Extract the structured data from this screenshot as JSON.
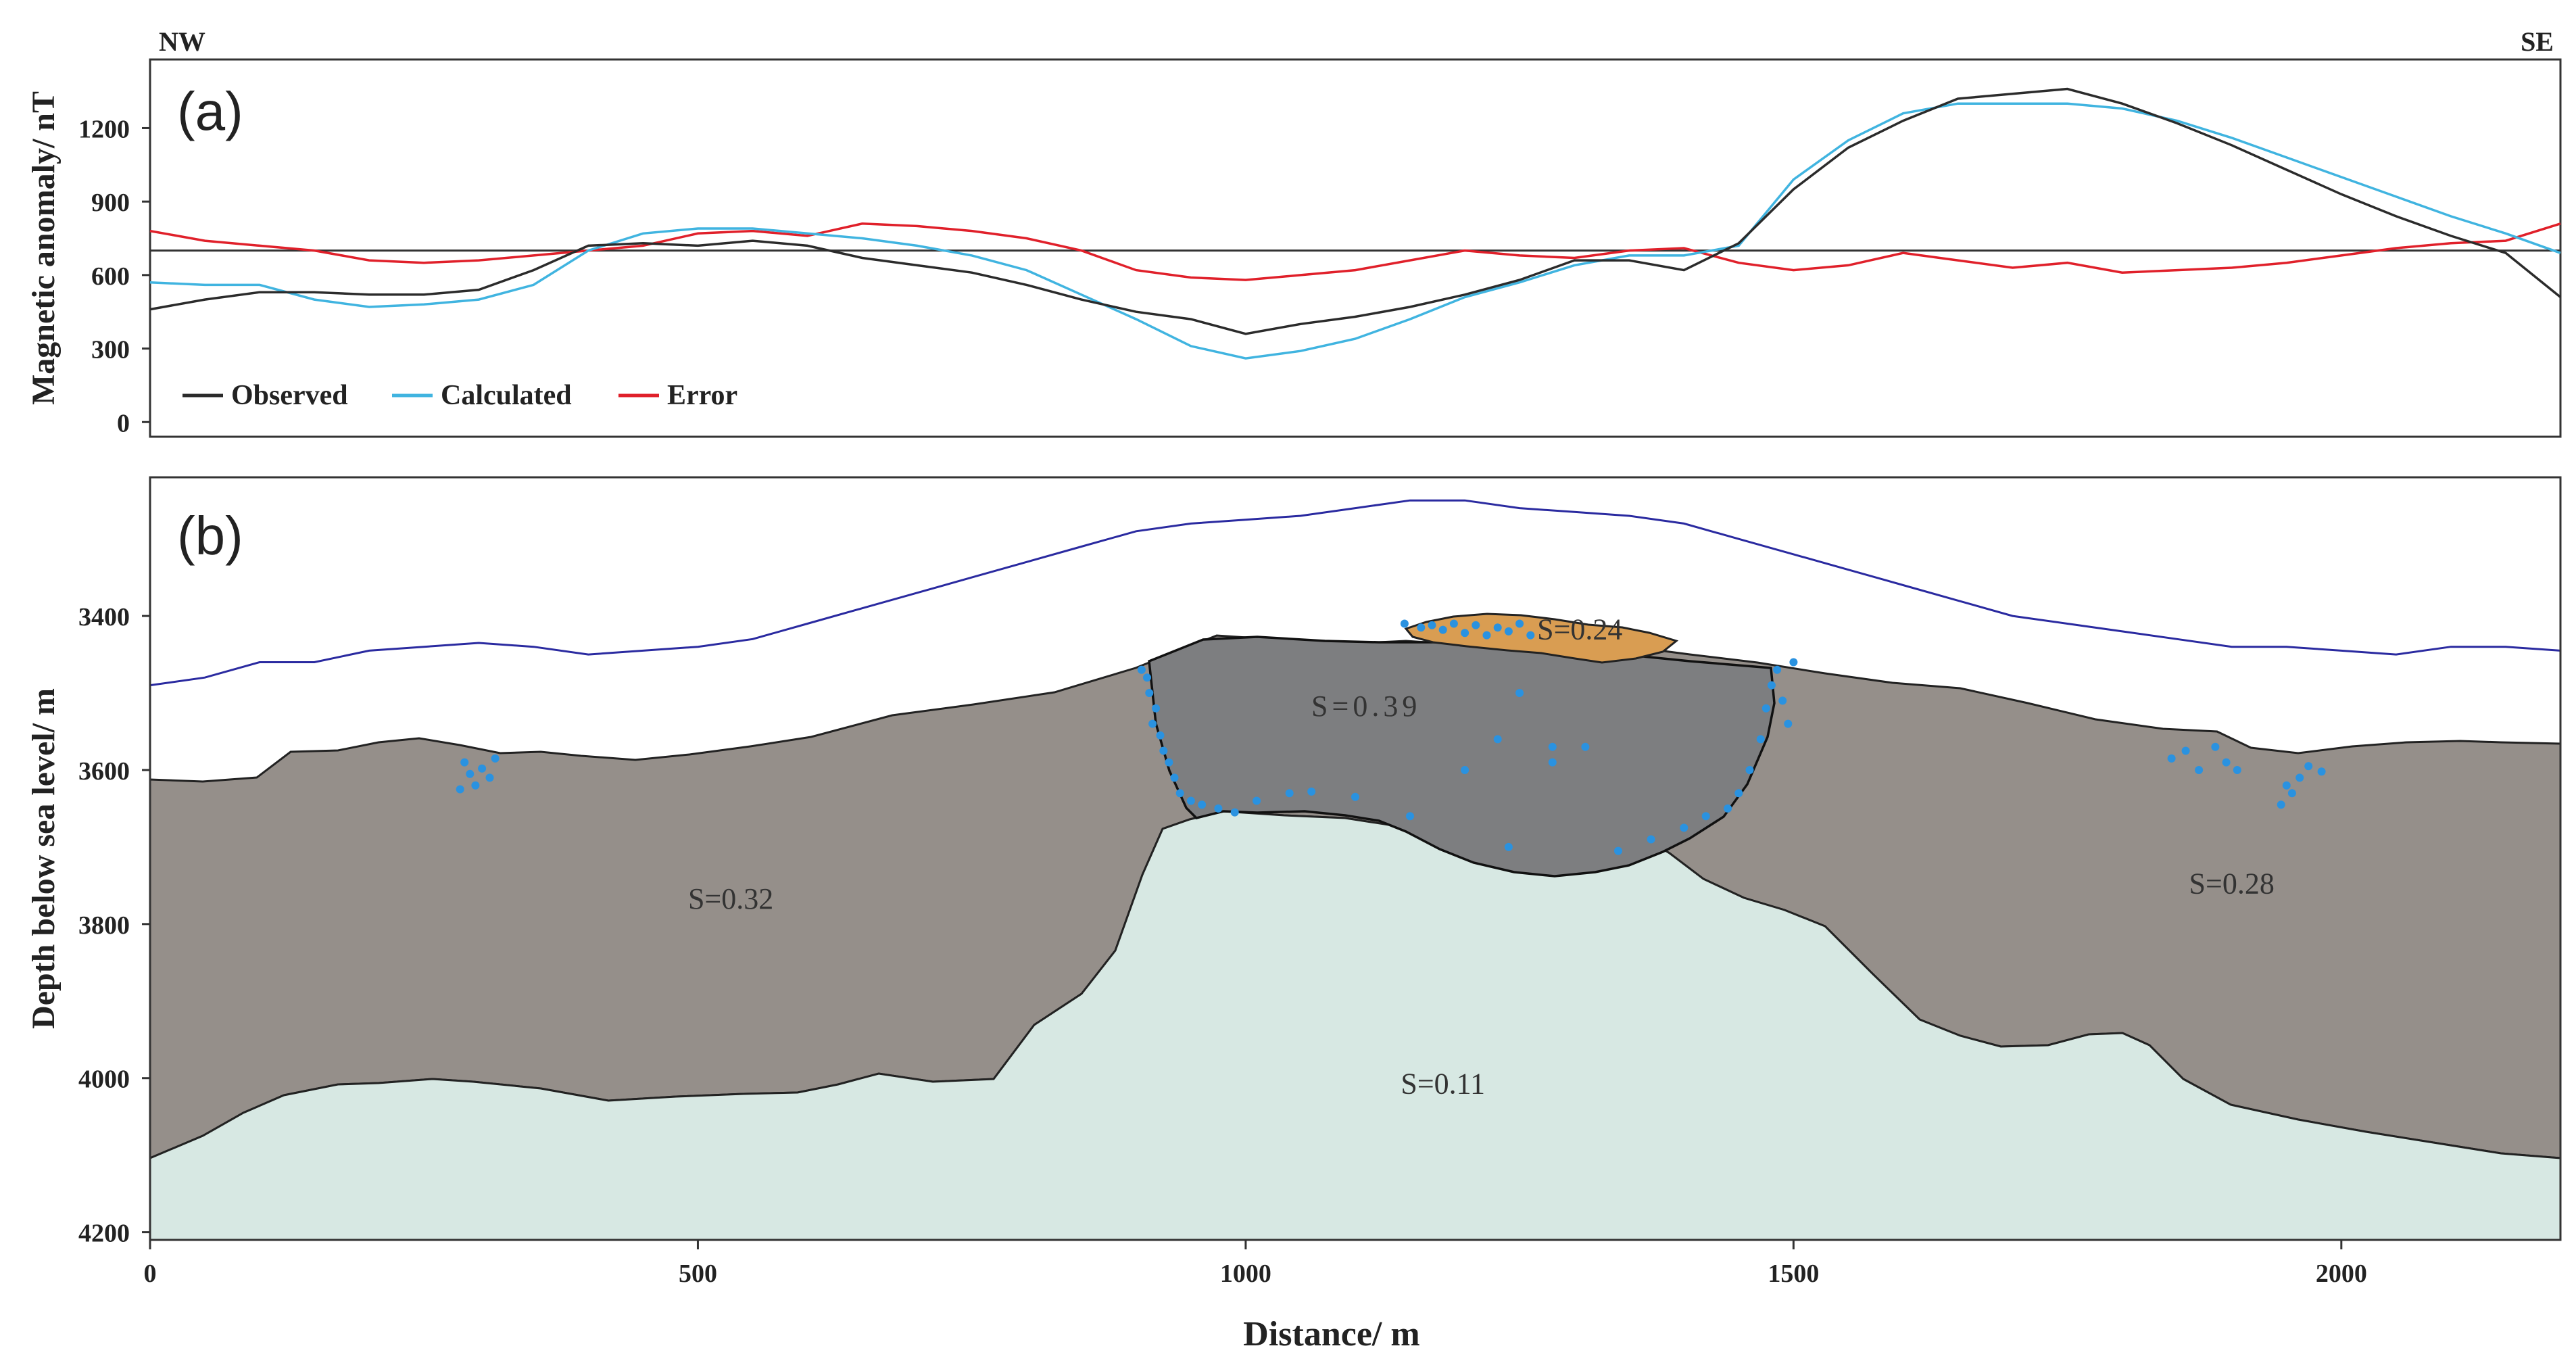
{
  "colors": {
    "observed": "#2b2b2b",
    "calculated": "#40b4e0",
    "error": "#e0202a",
    "surface": "#2a2aa0",
    "body_s032": "#958f8a",
    "body_s039": "#7d7e80",
    "body_s011": "#d7e8e3",
    "body_s024": "#d99d52",
    "points": "#2a92e0"
  },
  "figure": {
    "left_label": "NW",
    "right_label": "SE",
    "xlabel": "Distance/ m"
  },
  "chart_data": [
    {
      "type": "line",
      "panel_label": "(a)",
      "ylabel": "Magnetic anomaly/ nT",
      "xlim": [
        0,
        2200
      ],
      "ylim": [
        -60,
        1480
      ],
      "yticks": [
        "0",
        "300",
        "600",
        "900",
        "1200"
      ],
      "reference_line": 700,
      "legend": [
        "Observed",
        "Calculated",
        "Error"
      ],
      "x": [
        0,
        50,
        100,
        150,
        200,
        250,
        300,
        350,
        400,
        450,
        500,
        550,
        600,
        650,
        700,
        750,
        800,
        850,
        900,
        950,
        1000,
        1050,
        1100,
        1150,
        1200,
        1250,
        1300,
        1350,
        1400,
        1450,
        1500,
        1550,
        1600,
        1650,
        1700,
        1750,
        1800,
        1850,
        1900,
        1950,
        2000,
        2050,
        2100,
        2150,
        2200
      ],
      "series": [
        {
          "name": "Observed",
          "values": [
            460,
            500,
            530,
            530,
            520,
            520,
            540,
            620,
            720,
            730,
            720,
            740,
            720,
            670,
            640,
            610,
            560,
            500,
            450,
            420,
            360,
            400,
            430,
            470,
            520,
            580,
            660,
            660,
            620,
            730,
            950,
            1120,
            1230,
            1320,
            1340,
            1360,
            1300,
            1220,
            1130,
            1030,
            930,
            840,
            760,
            690,
            510
          ]
        },
        {
          "name": "Calculated",
          "values": [
            570,
            560,
            560,
            500,
            470,
            480,
            500,
            560,
            700,
            770,
            790,
            790,
            770,
            750,
            720,
            680,
            620,
            520,
            420,
            310,
            260,
            290,
            340,
            420,
            510,
            570,
            640,
            680,
            680,
            720,
            990,
            1150,
            1260,
            1300,
            1300,
            1300,
            1280,
            1230,
            1160,
            1080,
            1000,
            920,
            840,
            770,
            690
          ]
        },
        {
          "name": "Error",
          "values": [
            780,
            740,
            720,
            700,
            660,
            650,
            660,
            680,
            700,
            720,
            770,
            780,
            760,
            810,
            800,
            780,
            750,
            700,
            620,
            590,
            580,
            600,
            620,
            660,
            700,
            680,
            670,
            700,
            710,
            650,
            620,
            640,
            690,
            660,
            630,
            650,
            610,
            620,
            630,
            650,
            680,
            710,
            730,
            740,
            810
          ]
        }
      ]
    },
    {
      "type": "area",
      "panel_label": "(b)",
      "ylabel": "Depth below sea level/ m",
      "xlim": [
        0,
        2200
      ],
      "ylim": [
        4210,
        3220
      ],
      "yticks": [
        "3400",
        "3600",
        "3800",
        "4000",
        "4200"
      ],
      "xticks": [
        "0",
        "500",
        "1000",
        "1500",
        "2000"
      ],
      "surface_line": {
        "x": [
          0,
          50,
          100,
          150,
          200,
          250,
          300,
          350,
          400,
          450,
          500,
          550,
          600,
          650,
          700,
          750,
          800,
          850,
          900,
          950,
          1000,
          1050,
          1100,
          1150,
          1200,
          1250,
          1300,
          1350,
          1400,
          1450,
          1500,
          1550,
          1600,
          1650,
          1700,
          1750,
          1800,
          1850,
          1900,
          1950,
          2000,
          2050,
          2100,
          2150,
          2200
        ],
        "depth": [
          3490,
          3480,
          3460,
          3460,
          3445,
          3440,
          3435,
          3440,
          3450,
          3445,
          3440,
          3430,
          3410,
          3390,
          3370,
          3350,
          3330,
          3310,
          3290,
          3280,
          3275,
          3270,
          3260,
          3250,
          3250,
          3260,
          3265,
          3270,
          3280,
          3300,
          3320,
          3340,
          3360,
          3380,
          3400,
          3410,
          3420,
          3430,
          3440,
          3440,
          3445,
          3450,
          3440,
          3440,
          3445
        ]
      },
      "bodies": [
        {
          "label": "S=0.32",
          "label_pos": [
            530,
            3780
          ]
        },
        {
          "label": "S=0.39",
          "label_pos": [
            1110,
            3530
          ]
        },
        {
          "label": "S=0.24",
          "label_pos": [
            1305,
            3430
          ]
        },
        {
          "label": "S=0.11",
          "label_pos": [
            1180,
            4020
          ]
        },
        {
          "label": "S=0.28",
          "label_pos": [
            1900,
            3760
          ]
        }
      ],
      "points": [
        [
          905,
          3470
        ],
        [
          910,
          3480
        ],
        [
          912,
          3500
        ],
        [
          918,
          3520
        ],
        [
          915,
          3540
        ],
        [
          922,
          3555
        ],
        [
          925,
          3575
        ],
        [
          930,
          3590
        ],
        [
          935,
          3610
        ],
        [
          940,
          3630
        ],
        [
          950,
          3640
        ],
        [
          960,
          3645
        ],
        [
          975,
          3650
        ],
        [
          990,
          3655
        ],
        [
          1010,
          3640
        ],
        [
          1040,
          3630
        ],
        [
          1060,
          3628
        ],
        [
          1100,
          3635
        ],
        [
          1150,
          3660
        ],
        [
          1200,
          3600
        ],
        [
          1230,
          3560
        ],
        [
          1250,
          3500
        ],
        [
          1280,
          3590
        ],
        [
          1310,
          3570
        ],
        [
          1340,
          3705
        ],
        [
          1370,
          3690
        ],
        [
          1400,
          3675
        ],
        [
          1420,
          3660
        ],
        [
          1440,
          3650
        ],
        [
          1450,
          3630
        ],
        [
          1460,
          3600
        ],
        [
          1470,
          3560
        ],
        [
          1475,
          3520
        ],
        [
          1480,
          3490
        ],
        [
          1485,
          3470
        ],
        [
          1490,
          3510
        ],
        [
          1495,
          3540
        ],
        [
          1500,
          3460
        ],
        [
          1160,
          3415
        ],
        [
          1170,
          3412
        ],
        [
          1180,
          3418
        ],
        [
          1190,
          3410
        ],
        [
          1200,
          3422
        ],
        [
          1210,
          3412
        ],
        [
          1220,
          3425
        ],
        [
          1230,
          3415
        ],
        [
          1240,
          3420
        ],
        [
          1250,
          3410
        ],
        [
          1145,
          3410
        ],
        [
          1260,
          3425
        ],
        [
          1280,
          3570
        ],
        [
          1240,
          3700
        ],
        [
          287,
          3590
        ],
        [
          292,
          3605
        ],
        [
          297,
          3620
        ],
        [
          303,
          3598
        ],
        [
          310,
          3610
        ],
        [
          315,
          3585
        ],
        [
          283,
          3625
        ],
        [
          1845,
          3585
        ],
        [
          1858,
          3575
        ],
        [
          1870,
          3600
        ],
        [
          1885,
          3570
        ],
        [
          1895,
          3590
        ],
        [
          1905,
          3600
        ],
        [
          1945,
          3645
        ],
        [
          1955,
          3630
        ],
        [
          1962,
          3610
        ],
        [
          1970,
          3595
        ],
        [
          1982,
          3602
        ],
        [
          1950,
          3620
        ]
      ]
    }
  ]
}
